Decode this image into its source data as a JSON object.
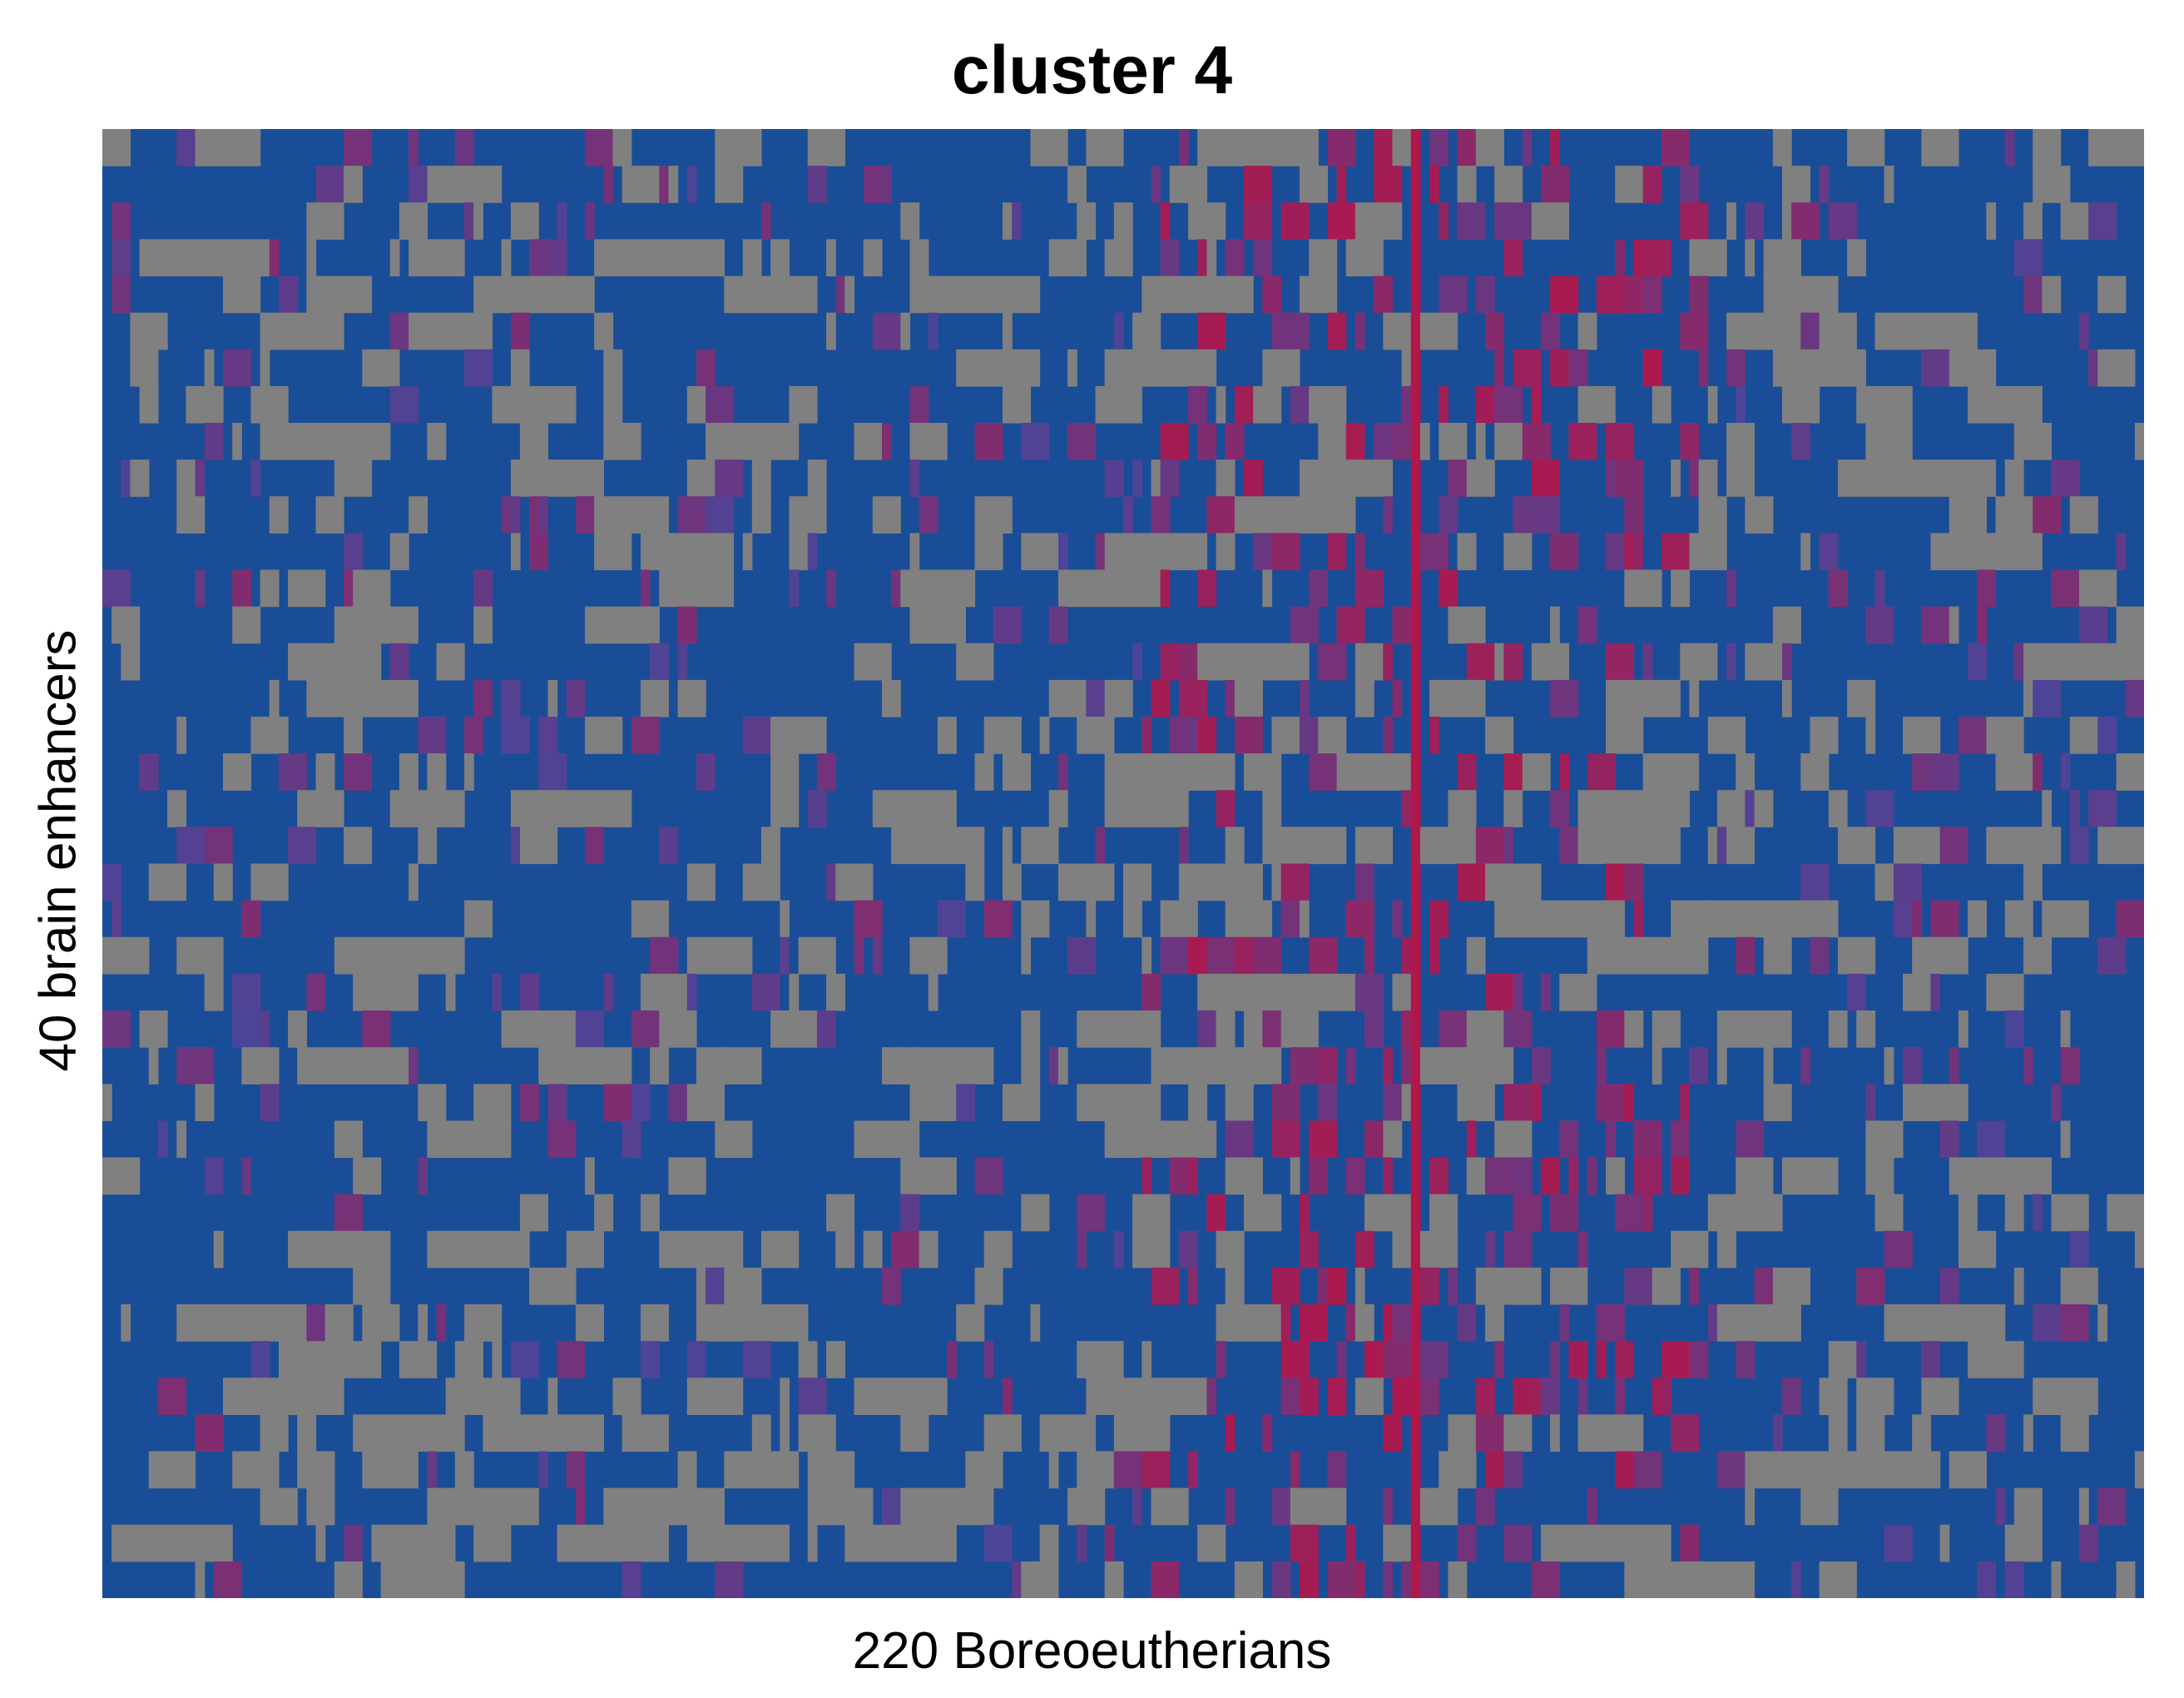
{
  "chart_data": {
    "type": "heatmap",
    "title": "cluster 4",
    "xlabel": "220 Boreoeutherians",
    "ylabel": "40 brain enhancers",
    "n_columns": 220,
    "n_rows": 40,
    "colors": {
      "background": "#1a4d97",
      "missing": "#808080",
      "mid": "#4b4599",
      "high": "#b0174b"
    },
    "highlight_column": 141
  }
}
